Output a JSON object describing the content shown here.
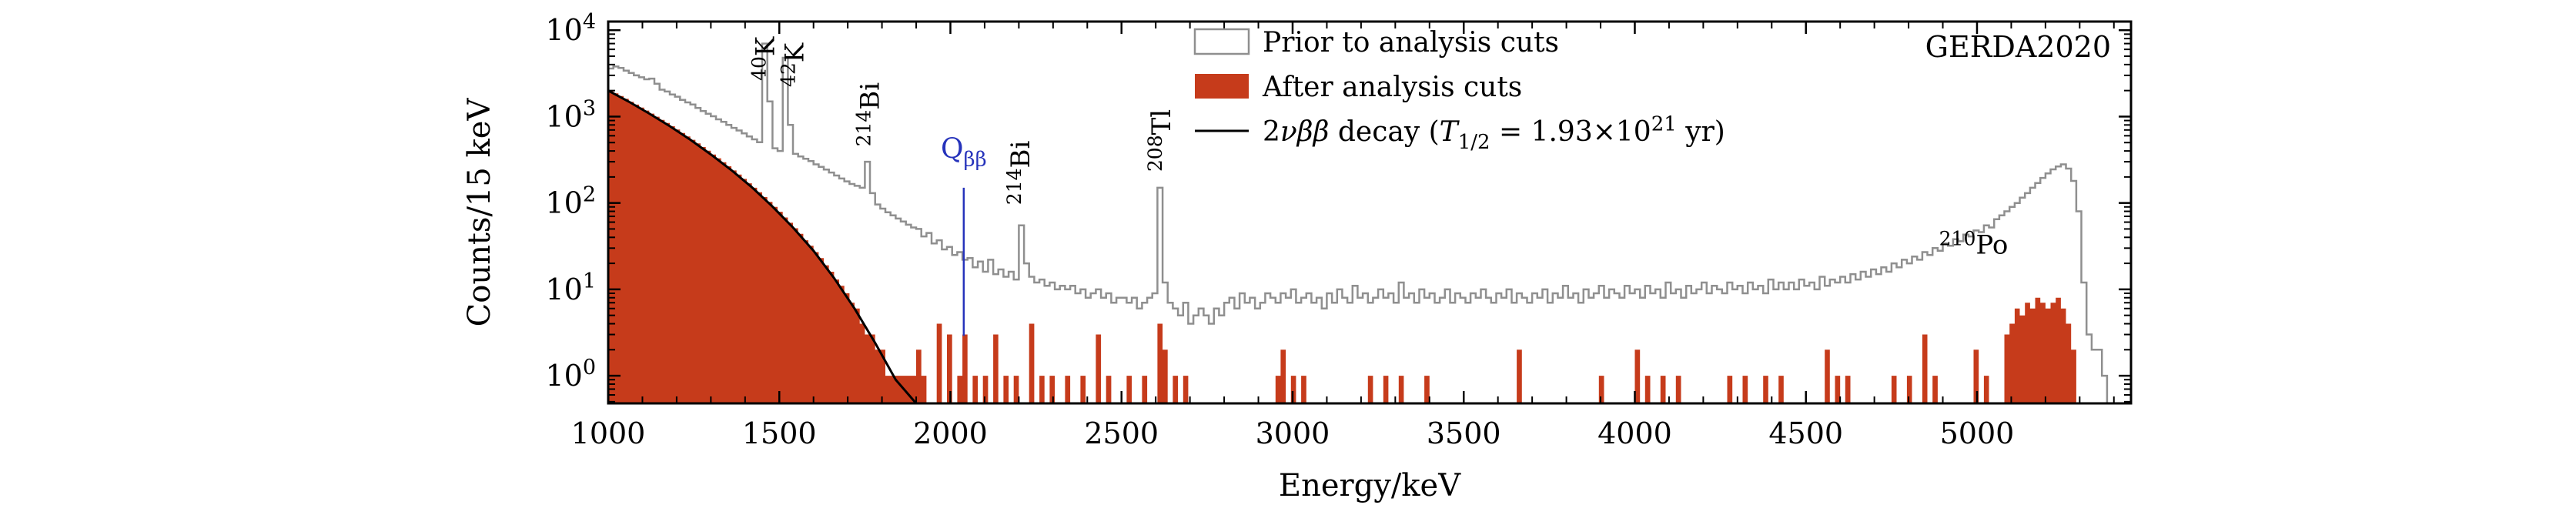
{
  "figure": {
    "background": "#ffffff"
  },
  "chart_data": {
    "type": "histogram-step",
    "title": "",
    "xlabel": "Energy/keV",
    "ylabel": "Counts/15 keV",
    "x_range": [
      1000,
      5450
    ],
    "y_scale": "log",
    "y_range_exponents": [
      -0.32,
      4.1
    ],
    "x_major_ticks": [
      1000,
      1500,
      2000,
      2500,
      3000,
      3500,
      4000,
      4500,
      5000
    ],
    "x_minor_tick_step": 100,
    "y_major_tick_exponents": [
      0,
      1,
      2,
      3,
      4
    ],
    "bin_width_kev": 15,
    "bin_start_kev": 1000,
    "corner_label": "GERDA2020",
    "series": [
      {
        "name": "Prior to analysis cuts",
        "style": "open-step",
        "color": "#8f8f8f",
        "values": [
          3600,
          3800,
          3650,
          3400,
          3200,
          3000,
          2850,
          2700,
          2750,
          2400,
          2050,
          1950,
          1800,
          1700,
          1560,
          1460,
          1380,
          1260,
          1160,
          1080,
          1010,
          930,
          870,
          800,
          740,
          690,
          640,
          590,
          545,
          505,
          7000,
          1500,
          430,
          400,
          4800,
          800,
          370,
          345,
          325,
          305,
          280,
          262,
          244,
          225,
          208,
          192,
          178,
          166,
          158,
          150,
          300,
          130,
          96,
          86,
          78,
          72,
          66,
          61,
          56,
          52,
          50,
          41,
          45,
          34,
          37,
          29,
          31,
          25,
          27,
          22,
          23,
          18,
          21,
          16,
          22,
          15,
          17,
          14,
          16,
          13,
          55,
          20,
          14,
          12,
          13,
          11,
          12,
          10,
          11,
          10,
          11,
          9,
          10,
          8,
          9,
          10,
          8,
          9,
          7,
          8,
          8,
          7,
          8,
          6,
          7,
          8,
          9,
          150,
          12,
          7,
          6,
          5,
          7,
          4,
          5,
          6,
          5,
          4,
          6,
          5,
          7,
          8,
          6,
          9,
          7,
          8,
          6,
          7,
          9,
          8,
          7,
          9,
          8,
          10,
          7,
          8,
          9,
          7,
          8,
          6,
          9,
          7,
          10,
          8,
          7,
          11,
          8,
          9,
          7,
          8,
          10,
          8,
          9,
          7,
          12,
          8,
          9,
          7,
          10,
          8,
          9,
          7,
          8,
          10,
          7,
          9,
          8,
          7,
          9,
          8,
          10,
          8,
          7,
          9,
          8,
          10,
          7,
          9,
          8,
          7,
          9,
          8,
          10,
          7,
          9,
          8,
          11,
          8,
          9,
          7,
          10,
          8,
          9,
          11,
          8,
          10,
          9,
          8,
          11,
          9,
          10,
          8,
          11,
          9,
          10,
          8,
          12,
          9,
          10,
          8,
          11,
          9,
          10,
          12,
          9,
          11,
          10,
          9,
          12,
          10,
          11,
          9,
          12,
          10,
          11,
          9,
          13,
          10,
          12,
          10,
          12,
          10,
          13,
          11,
          12,
          10,
          14,
          11,
          13,
          12,
          14,
          12,
          15,
          13,
          16,
          14,
          17,
          15,
          18,
          16,
          20,
          18,
          22,
          20,
          24,
          22,
          27,
          25,
          30,
          28,
          34,
          32,
          38,
          36,
          43,
          41,
          48,
          46,
          55,
          52,
          65,
          72,
          80,
          90,
          100,
          115,
          130,
          150,
          170,
          195,
          220,
          245,
          265,
          280,
          250,
          180,
          80,
          12,
          3,
          2,
          2,
          1,
          0,
          0
        ]
      },
      {
        "name": "After analysis cuts",
        "style": "filled",
        "color": "#c63b1b",
        "values": [
          2000,
          1860,
          1727,
          1603,
          1485,
          1375,
          1271,
          1174,
          1083,
          997,
          917,
          842,
          773,
          707,
          647,
          590,
          538,
          489,
          444,
          403,
          364,
          329,
          296,
          266,
          238,
          213,
          190,
          169,
          150,
          133,
          117,
          103,
          90,
          79,
          68,
          59,
          51,
          44,
          37,
          32,
          27,
          23,
          19,
          16,
          13,
          11,
          9,
          7,
          6,
          4,
          3,
          3,
          2,
          2,
          1,
          1,
          1,
          1,
          1,
          1,
          2,
          1,
          0,
          0,
          4,
          0,
          3,
          0,
          1,
          3,
          0,
          1,
          0,
          1,
          0,
          3,
          0,
          1,
          0,
          1,
          0,
          0,
          4,
          0,
          1,
          0,
          1,
          0,
          0,
          1,
          0,
          0,
          1,
          0,
          0,
          3,
          0,
          1,
          0,
          0,
          0,
          1,
          0,
          0,
          1,
          0,
          0,
          4,
          2,
          0,
          1,
          0,
          1,
          0,
          0,
          0,
          0,
          0,
          0,
          0,
          0,
          0,
          0,
          0,
          0,
          0,
          0,
          0,
          0,
          0,
          1,
          2,
          0,
          1,
          0,
          1,
          0,
          0,
          0,
          0,
          0,
          0,
          0,
          0,
          0,
          0,
          0,
          0,
          1,
          0,
          0,
          1,
          0,
          0,
          1,
          0,
          0,
          0,
          0,
          1,
          0,
          0,
          0,
          0,
          0,
          0,
          0,
          0,
          0,
          0,
          0,
          0,
          0,
          0,
          0,
          0,
          0,
          2,
          0,
          0,
          0,
          0,
          0,
          0,
          0,
          0,
          0,
          0,
          0,
          0,
          0,
          0,
          0,
          1,
          0,
          0,
          0,
          0,
          0,
          0,
          2,
          0,
          1,
          0,
          0,
          1,
          0,
          0,
          1,
          0,
          0,
          0,
          0,
          0,
          0,
          0,
          0,
          0,
          1,
          0,
          0,
          1,
          0,
          0,
          0,
          1,
          0,
          0,
          1,
          0,
          0,
          0,
          0,
          0,
          0,
          0,
          0,
          2,
          0,
          1,
          0,
          1,
          0,
          0,
          0,
          0,
          0,
          0,
          0,
          0,
          1,
          0,
          0,
          1,
          0,
          0,
          3,
          0,
          1,
          0,
          0,
          0,
          0,
          0,
          0,
          0,
          2,
          0,
          1,
          0,
          0,
          0,
          3,
          4,
          6,
          5,
          7,
          6,
          8,
          7,
          6,
          7,
          8,
          6,
          4,
          2,
          0,
          0,
          0,
          0,
          0,
          0,
          0,
          0
        ]
      }
    ],
    "curve": {
      "name": "2nu-beta-beta decay",
      "color": "#000000",
      "half_life_label": "1.93×10^21 yr",
      "points": [
        [
          1000,
          2000
        ],
        [
          1060,
          1490
        ],
        [
          1120,
          1085
        ],
        [
          1180,
          775
        ],
        [
          1240,
          540
        ],
        [
          1300,
          365
        ],
        [
          1360,
          240
        ],
        [
          1420,
          152
        ],
        [
          1480,
          91
        ],
        [
          1540,
          52
        ],
        [
          1600,
          28
        ],
        [
          1660,
          13.5
        ],
        [
          1720,
          6
        ],
        [
          1780,
          2.4
        ],
        [
          1840,
          0.9
        ],
        [
          1900,
          0.32
        ]
      ]
    },
    "marker_line": {
      "x_kev": 2039,
      "y_from": 2.9,
      "y_to": 150,
      "label_y": 330,
      "color": "#2633bb",
      "label_parts": [
        {
          "t": "Q"
        },
        {
          "t": "ββ",
          "style": "sub"
        }
      ]
    },
    "annotations": [
      {
        "mass": "40",
        "element": "K",
        "x_kev": 1458,
        "y_counts": 2600,
        "rotate": true
      },
      {
        "mass": "42",
        "element": "K",
        "x_kev": 1543,
        "y_counts": 2200,
        "rotate": true
      },
      {
        "mass": "214",
        "element": "Bi",
        "x_kev": 1764,
        "y_counts": 450,
        "rotate": true
      },
      {
        "mass": "214",
        "element": "Bi",
        "x_kev": 2204,
        "y_counts": 95,
        "rotate": true
      },
      {
        "mass": "208",
        "element": "Tl",
        "x_kev": 2615,
        "y_counts": 230,
        "rotate": true
      },
      {
        "mass": "210",
        "element": "Po",
        "x_kev": 4990,
        "y_counts": 26,
        "rotate": false
      }
    ],
    "legend": {
      "position": "top-inside-left-of-center",
      "entries": [
        {
          "id": "prior",
          "swatch": "open",
          "color": "#8f8f8f",
          "label": "Prior to analysis cuts"
        },
        {
          "id": "after",
          "swatch": "filled",
          "color": "#c63b1b",
          "label": "After analysis cuts"
        },
        {
          "id": "curve",
          "swatch": "line",
          "color": "#000000",
          "label_parts": [
            {
              "t": "2"
            },
            {
              "t": "νββ",
              "italic": true
            },
            {
              "t": " decay ("
            },
            {
              "t": "T",
              "italic": true
            },
            {
              "t": "1/2",
              "style": "sub"
            },
            {
              "t": " = 1.93×10"
            },
            {
              "t": "21",
              "style": "sup"
            },
            {
              "t": " yr)"
            }
          ]
        }
      ]
    }
  }
}
